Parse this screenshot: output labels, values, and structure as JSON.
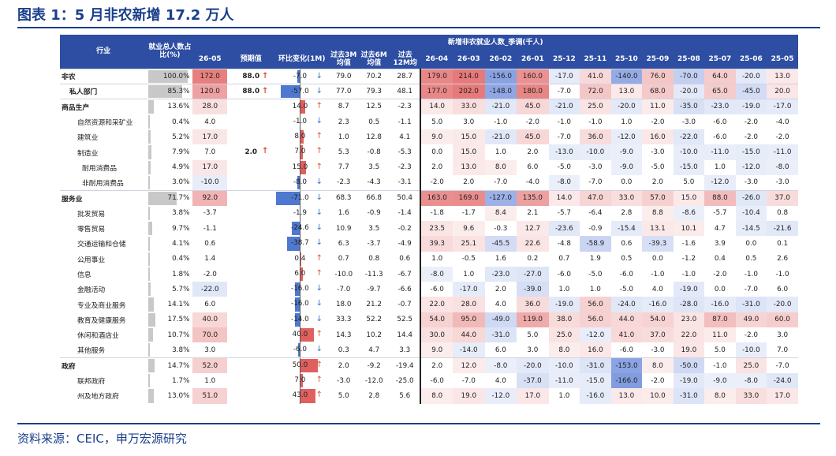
{
  "title": "图表 1：5 月非农新增 17.2 万人",
  "source": "资料来源：CEIC，申万宏源研究",
  "header": {
    "industry": "行业",
    "share": "就业总人数占比(%)",
    "group_label": "新增非农就业人数_季调(千人)",
    "cols": [
      "26-05",
      "预期值",
      "环比变化(1M)",
      "过去3M均值",
      "过去6M均值",
      "过去12M均",
      "26-04",
      "26-03",
      "26-02",
      "26-01",
      "25-12",
      "25-11",
      "25-10",
      "25-09",
      "25-08",
      "25-07",
      "25-06",
      "25-05"
    ]
  },
  "colors": {
    "header": "#2d4ea2",
    "positive": "#e06a6a",
    "negative": "#5b7fd6",
    "accent": "#1a3f8c"
  },
  "rows": [
    {
      "name": "非农",
      "level": 0,
      "share": "100.0%",
      "share_v": 100,
      "v": "172.0",
      "pred": "88.0",
      "pred_dir": "up",
      "mom": "-7.0",
      "mom_v": -7,
      "mom_dir": "down",
      "m3": "79.0",
      "m6": "70.2",
      "m12": "28.7",
      "hist": [
        "179.0",
        "214.0",
        "-156.0",
        "160.0",
        "-17.0",
        "41.0",
        "-140.0",
        "76.0",
        "-70.0",
        "64.0",
        "-20.0",
        "13.0"
      ]
    },
    {
      "name": "私人部门",
      "level": 1,
      "share": "85.3%",
      "share_v": 85.3,
      "v": "120.0",
      "pred": "88.0",
      "pred_dir": "up",
      "mom": "-57.0",
      "mom_v": -57,
      "mom_dir": "down",
      "m3": "77.0",
      "m6": "79.3",
      "m12": "48.1",
      "hist": [
        "177.0",
        "202.0",
        "-148.0",
        "180.0",
        "-7.0",
        "72.0",
        "13.0",
        "68.0",
        "-20.0",
        "65.0",
        "-45.0",
        "20.0"
      ]
    },
    {
      "name": "商品生产",
      "level": 0,
      "share": "13.6%",
      "share_v": 13.6,
      "v": "28.0",
      "pred": "",
      "pred_dir": "",
      "mom": "14.0",
      "mom_v": 14,
      "mom_dir": "up",
      "m3": "8.7",
      "m6": "12.5",
      "m12": "-2.3",
      "hist": [
        "14.0",
        "33.0",
        "-21.0",
        "45.0",
        "-21.0",
        "25.0",
        "-20.0",
        "11.0",
        "-35.0",
        "-23.0",
        "-19.0",
        "-17.0"
      ]
    },
    {
      "name": "自然资源和采矿业",
      "level": 2,
      "share": "0.4%",
      "share_v": 0.4,
      "v": "4.0",
      "pred": "",
      "pred_dir": "",
      "mom": "-1.0",
      "mom_v": -1,
      "mom_dir": "down",
      "m3": "2.3",
      "m6": "0.5",
      "m12": "-1.1",
      "hist": [
        "5.0",
        "3.0",
        "-1.0",
        "-2.0",
        "-1.0",
        "-1.0",
        "1.0",
        "-2.0",
        "-3.0",
        "-6.0",
        "-2.0",
        "-4.0"
      ]
    },
    {
      "name": "建筑业",
      "level": 2,
      "share": "5.2%",
      "share_v": 5.2,
      "v": "17.0",
      "pred": "",
      "pred_dir": "",
      "mom": "8.0",
      "mom_v": 8,
      "mom_dir": "up",
      "m3": "1.0",
      "m6": "12.8",
      "m12": "4.1",
      "hist": [
        "9.0",
        "15.0",
        "-21.0",
        "45.0",
        "-7.0",
        "36.0",
        "-12.0",
        "16.0",
        "-22.0",
        "-6.0",
        "-2.0",
        "-2.0"
      ]
    },
    {
      "name": "制造业",
      "level": 2,
      "share": "7.9%",
      "share_v": 7.9,
      "v": "7.0",
      "pred": "2.0",
      "pred_dir": "up",
      "mom": "7.0",
      "mom_v": 7,
      "mom_dir": "up",
      "m3": "5.3",
      "m6": "-0.8",
      "m12": "-5.3",
      "hist": [
        "0.0",
        "15.0",
        "1.0",
        "2.0",
        "-13.0",
        "-10.0",
        "-9.0",
        "-3.0",
        "-10.0",
        "-11.0",
        "-15.0",
        "-11.0"
      ]
    },
    {
      "name": "耐用消费品",
      "level": 3,
      "share": "4.9%",
      "share_v": 4.9,
      "v": "17.0",
      "pred": "",
      "pred_dir": "",
      "mom": "15.0",
      "mom_v": 15,
      "mom_dir": "up",
      "m3": "7.7",
      "m6": "3.5",
      "m12": "-2.3",
      "hist": [
        "2.0",
        "13.0",
        "8.0",
        "6.0",
        "-5.0",
        "-3.0",
        "-9.0",
        "-5.0",
        "-15.0",
        "1.0",
        "-12.0",
        "-8.0"
      ]
    },
    {
      "name": "非耐用消费品",
      "level": 3,
      "share": "3.0%",
      "share_v": 3.0,
      "v": "-10.0",
      "pred": "",
      "pred_dir": "",
      "mom": "-8.0",
      "mom_v": -8,
      "mom_dir": "down",
      "m3": "-2.3",
      "m6": "-4.3",
      "m12": "-3.1",
      "hist": [
        "-2.0",
        "2.0",
        "-7.0",
        "-4.0",
        "-8.0",
        "-7.0",
        "0.0",
        "2.0",
        "5.0",
        "-12.0",
        "-3.0",
        "-3.0"
      ]
    },
    {
      "name": "服务业",
      "level": 0,
      "share": "71.7%",
      "share_v": 71.7,
      "v": "92.0",
      "pred": "",
      "pred_dir": "",
      "mom": "-71.0",
      "mom_v": -71,
      "mom_dir": "down",
      "m3": "68.3",
      "m6": "66.8",
      "m12": "50.4",
      "hist": [
        "163.0",
        "169.0",
        "-127.0",
        "135.0",
        "14.0",
        "47.0",
        "33.0",
        "57.0",
        "15.0",
        "88.0",
        "-26.0",
        "37.0"
      ]
    },
    {
      "name": "批发贸易",
      "level": 2,
      "share": "3.8%",
      "share_v": 3.8,
      "v": "-3.7",
      "pred": "",
      "pred_dir": "",
      "mom": "-1.9",
      "mom_v": -1.9,
      "mom_dir": "down",
      "m3": "1.6",
      "m6": "-0.9",
      "m12": "-1.4",
      "hist": [
        "-1.8",
        "-1.7",
        "8.4",
        "2.1",
        "-5.7",
        "-6.4",
        "2.8",
        "8.8",
        "-8.6",
        "-5.7",
        "-10.4",
        "0.8"
      ]
    },
    {
      "name": "零售贸易",
      "level": 2,
      "share": "9.7%",
      "share_v": 9.7,
      "v": "-1.1",
      "pred": "",
      "pred_dir": "",
      "mom": "-24.6",
      "mom_v": -24.6,
      "mom_dir": "down",
      "m3": "10.9",
      "m6": "3.5",
      "m12": "-0.2",
      "hist": [
        "23.5",
        "9.6",
        "-0.3",
        "12.7",
        "-23.6",
        "-0.9",
        "-15.4",
        "13.1",
        "10.1",
        "4.7",
        "-14.5",
        "-21.6"
      ]
    },
    {
      "name": "交通运输和仓储",
      "level": 2,
      "share": "4.1%",
      "share_v": 4.1,
      "v": "0.6",
      "pred": "",
      "pred_dir": "",
      "mom": "-38.7",
      "mom_v": -38.7,
      "mom_dir": "down",
      "m3": "6.3",
      "m6": "-3.7",
      "m12": "-4.9",
      "hist": [
        "39.3",
        "25.1",
        "-45.5",
        "22.6",
        "-4.8",
        "-58.9",
        "0.6",
        "-39.3",
        "-1.6",
        "3.9",
        "0.0",
        "0.1"
      ]
    },
    {
      "name": "公用事业",
      "level": 2,
      "share": "0.4%",
      "share_v": 0.4,
      "v": "1.4",
      "pred": "",
      "pred_dir": "",
      "mom": "0.4",
      "mom_v": 0.4,
      "mom_dir": "up",
      "m3": "0.7",
      "m6": "0.8",
      "m12": "0.6",
      "hist": [
        "1.0",
        "-0.5",
        "1.6",
        "0.2",
        "0.7",
        "1.9",
        "0.5",
        "0.0",
        "-1.2",
        "0.4",
        "0.5",
        "2.6"
      ]
    },
    {
      "name": "信息",
      "level": 2,
      "share": "1.8%",
      "share_v": 1.8,
      "v": "-2.0",
      "pred": "",
      "pred_dir": "",
      "mom": "6.0",
      "mom_v": 6,
      "mom_dir": "up",
      "m3": "-10.0",
      "m6": "-11.3",
      "m12": "-6.7",
      "hist": [
        "-8.0",
        "1.0",
        "-23.0",
        "-27.0",
        "-6.0",
        "-5.0",
        "-6.0",
        "-1.0",
        "-1.0",
        "-2.0",
        "-1.0",
        "-1.0"
      ]
    },
    {
      "name": "金融活动",
      "level": 2,
      "share": "5.7%",
      "share_v": 5.7,
      "v": "-22.0",
      "pred": "",
      "pred_dir": "",
      "mom": "-16.0",
      "mom_v": -16,
      "mom_dir": "down",
      "m3": "-7.0",
      "m6": "-9.7",
      "m12": "-6.6",
      "hist": [
        "-6.0",
        "-17.0",
        "2.0",
        "-39.0",
        "1.0",
        "1.0",
        "-5.0",
        "4.0",
        "-19.0",
        "0.0",
        "-7.0",
        "6.0"
      ]
    },
    {
      "name": "专业及商业服务",
      "level": 2,
      "share": "14.1%",
      "share_v": 14.1,
      "v": "6.0",
      "pred": "",
      "pred_dir": "",
      "mom": "-16.0",
      "mom_v": -16,
      "mom_dir": "down",
      "m3": "18.0",
      "m6": "21.2",
      "m12": "-0.7",
      "hist": [
        "22.0",
        "28.0",
        "4.0",
        "36.0",
        "-19.0",
        "56.0",
        "-24.0",
        "-16.0",
        "-28.0",
        "-16.0",
        "-31.0",
        "-20.0"
      ]
    },
    {
      "name": "教育及健康服务",
      "level": 2,
      "share": "17.5%",
      "share_v": 17.5,
      "v": "40.0",
      "pred": "",
      "pred_dir": "",
      "mom": "-14.0",
      "mom_v": -14,
      "mom_dir": "down",
      "m3": "33.3",
      "m6": "52.2",
      "m12": "52.5",
      "hist": [
        "54.0",
        "95.0",
        "-49.0",
        "119.0",
        "38.0",
        "56.0",
        "44.0",
        "54.0",
        "23.0",
        "87.0",
        "49.0",
        "60.0"
      ]
    },
    {
      "name": "休闲和酒店业",
      "level": 2,
      "share": "10.7%",
      "share_v": 10.7,
      "v": "70.0",
      "pred": "",
      "pred_dir": "",
      "mom": "40.0",
      "mom_v": 40,
      "mom_dir": "up",
      "m3": "14.3",
      "m6": "10.2",
      "m12": "14.4",
      "hist": [
        "30.0",
        "44.0",
        "-31.0",
        "5.0",
        "25.0",
        "-12.0",
        "41.0",
        "37.0",
        "22.0",
        "11.0",
        "-2.0",
        "3.0"
      ]
    },
    {
      "name": "其他服务",
      "level": 2,
      "share": "3.8%",
      "share_v": 3.8,
      "v": "3.0",
      "pred": "",
      "pred_dir": "",
      "mom": "-6.0",
      "mom_v": -6,
      "mom_dir": "down",
      "m3": "0.3",
      "m6": "4.7",
      "m12": "3.3",
      "hist": [
        "9.0",
        "-14.0",
        "6.0",
        "3.0",
        "8.0",
        "16.0",
        "-6.0",
        "-3.0",
        "19.0",
        "5.0",
        "-10.0",
        "7.0"
      ]
    },
    {
      "name": "政府",
      "level": 0,
      "share": "14.7%",
      "share_v": 14.7,
      "v": "52.0",
      "pred": "",
      "pred_dir": "",
      "mom": "50.0",
      "mom_v": 50,
      "mom_dir": "up",
      "m3": "2.0",
      "m6": "-9.2",
      "m12": "-19.4",
      "hist": [
        "2.0",
        "12.0",
        "-8.0",
        "-20.0",
        "-10.0",
        "-31.0",
        "-153.0",
        "8.0",
        "-50.0",
        "-1.0",
        "25.0",
        "-7.0"
      ]
    },
    {
      "name": "联邦政府",
      "level": 2,
      "share": "1.7%",
      "share_v": 1.7,
      "v": "1.0",
      "pred": "",
      "pred_dir": "",
      "mom": "7.0",
      "mom_v": 7,
      "mom_dir": "up",
      "m3": "-3.0",
      "m6": "-12.0",
      "m12": "-25.0",
      "hist": [
        "-6.0",
        "-7.0",
        "4.0",
        "-37.0",
        "-11.0",
        "-15.0",
        "-166.0",
        "-2.0",
        "-19.0",
        "-9.0",
        "-8.0",
        "-24.0"
      ]
    },
    {
      "name": "州及地方政府",
      "level": 2,
      "share": "13.0%",
      "share_v": 13.0,
      "v": "51.0",
      "pred": "",
      "pred_dir": "",
      "mom": "43.0",
      "mom_v": 43,
      "mom_dir": "up",
      "m3": "5.0",
      "m6": "2.8",
      "m12": "5.6",
      "hist": [
        "8.0",
        "19.0",
        "-12.0",
        "17.0",
        "1.0",
        "-16.0",
        "13.0",
        "10.0",
        "-31.0",
        "8.0",
        "33.0",
        "17.0"
      ]
    }
  ]
}
